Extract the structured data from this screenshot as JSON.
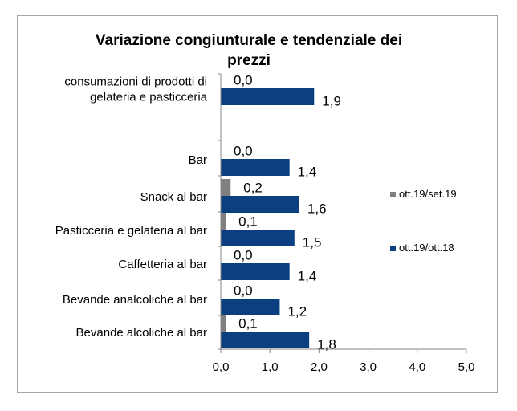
{
  "chart_data": {
    "type": "bar",
    "orientation": "horizontal",
    "title": "Variazione congiunturale e tendenziale dei prezzi",
    "categories": [
      "consumazioni di prodotti di gelateria e pasticceria",
      "Bar",
      "Snack al bar",
      "Pasticceria e gelateria al bar",
      "Caffetteria al bar",
      "Bevande analcoliche al bar",
      "Bevande alcoliche al bar"
    ],
    "category_lines": [
      [
        "consumazioni di prodotti di",
        "gelateria e pasticceria"
      ],
      [
        "Bar"
      ],
      [
        "Snack al bar"
      ],
      [
        "Pasticceria e gelateria al bar"
      ],
      [
        "Caffetteria al bar"
      ],
      [
        "Bevande analcoliche al bar"
      ],
      [
        "Bevande alcoliche al bar"
      ]
    ],
    "series": [
      {
        "name": "ott.19/set.19",
        "color": "#808080",
        "values": [
          0.0,
          0.0,
          0.2,
          0.1,
          0.0,
          0.0,
          0.1
        ],
        "labels": [
          "0,0",
          "0,0",
          "0,2",
          "0,1",
          "0,0",
          "0,0",
          "0,1"
        ]
      },
      {
        "name": "ott.19/ott.18",
        "color": "#0b3f7f",
        "values": [
          1.9,
          1.4,
          1.6,
          1.5,
          1.4,
          1.2,
          1.8
        ],
        "labels": [
          "1,9",
          "1,4",
          "1,6",
          "1,5",
          "1,4",
          "1,2",
          "1,8"
        ]
      }
    ],
    "xlim": [
      0,
      5
    ],
    "xticks": [
      "0,0",
      "1,0",
      "2,0",
      "3,0",
      "4,0",
      "5,0"
    ],
    "grid": false,
    "legend_position": "right"
  }
}
